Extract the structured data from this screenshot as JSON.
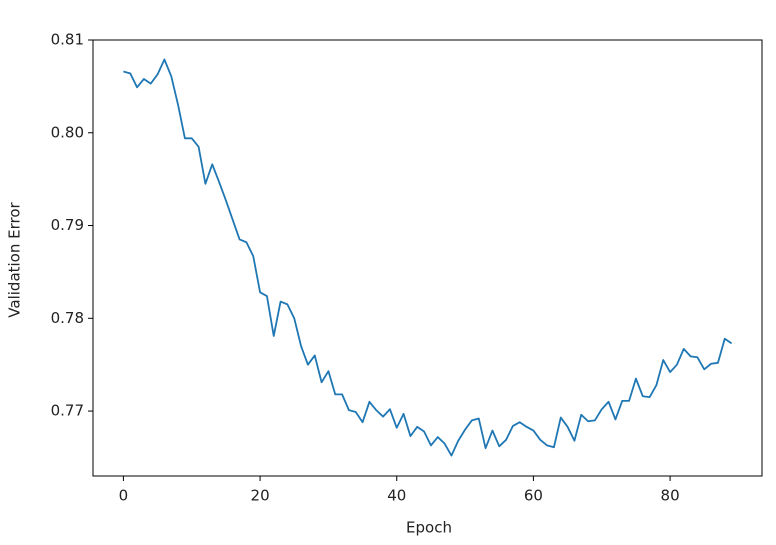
{
  "chart_data": {
    "type": "line",
    "xlabel": "Epoch",
    "ylabel": "Validation Error",
    "x": [
      0,
      1,
      2,
      3,
      4,
      5,
      6,
      7,
      8,
      9,
      10,
      11,
      12,
      13,
      14,
      15,
      16,
      17,
      18,
      19,
      20,
      21,
      22,
      23,
      24,
      25,
      26,
      27,
      28,
      29,
      30,
      31,
      32,
      33,
      34,
      35,
      36,
      37,
      38,
      39,
      40,
      41,
      42,
      43,
      44,
      45,
      46,
      47,
      48,
      49,
      50,
      51,
      52,
      53,
      54,
      55,
      56,
      57,
      58,
      59,
      60,
      61,
      62,
      63,
      64,
      65,
      66,
      67,
      68,
      69,
      70,
      71,
      72,
      73,
      74,
      75,
      76,
      77,
      78,
      79,
      80,
      81,
      82,
      83,
      84,
      85,
      86,
      87,
      88,
      89
    ],
    "series": [
      {
        "color": "#1f77b4",
        "values": [
          0.8066,
          0.8064,
          0.8049,
          0.8058,
          0.8053,
          0.8063,
          0.8079,
          0.8061,
          0.803,
          0.7994,
          0.7994,
          0.7985,
          0.7945,
          0.7966,
          0.7947,
          0.7927,
          0.7906,
          0.7885,
          0.7882,
          0.7867,
          0.7828,
          0.7824,
          0.7781,
          0.7818,
          0.7815,
          0.78,
          0.777,
          0.775,
          0.776,
          0.7731,
          0.7743,
          0.7718,
          0.7718,
          0.7701,
          0.7699,
          0.7688,
          0.771,
          0.7701,
          0.7694,
          0.7702,
          0.7682,
          0.7697,
          0.7673,
          0.7683,
          0.7678,
          0.7663,
          0.7672,
          0.7665,
          0.7652,
          0.7668,
          0.768,
          0.769,
          0.7692,
          0.766,
          0.7679,
          0.7662,
          0.7669,
          0.7684,
          0.7688,
          0.7683,
          0.7679,
          0.7669,
          0.7663,
          0.7661,
          0.7693,
          0.7683,
          0.7668,
          0.7696,
          0.7689,
          0.769,
          0.7702,
          0.771,
          0.7691,
          0.7711,
          0.7711,
          0.7735,
          0.7716,
          0.7715,
          0.7728,
          0.7755,
          0.7742,
          0.775,
          0.7767,
          0.7759,
          0.7758,
          0.7745,
          0.7751,
          0.7752,
          0.7778,
          0.7773
        ]
      }
    ],
    "xlim": [
      -4.45,
      93.45
    ],
    "ylim": [
      0.763,
      0.81
    ],
    "xticks": [
      0,
      20,
      40,
      60,
      80
    ],
    "yticks": [
      0.77,
      0.78,
      0.79,
      {
        "value": 0.8,
        "label": "0.80"
      },
      0.81
    ]
  }
}
